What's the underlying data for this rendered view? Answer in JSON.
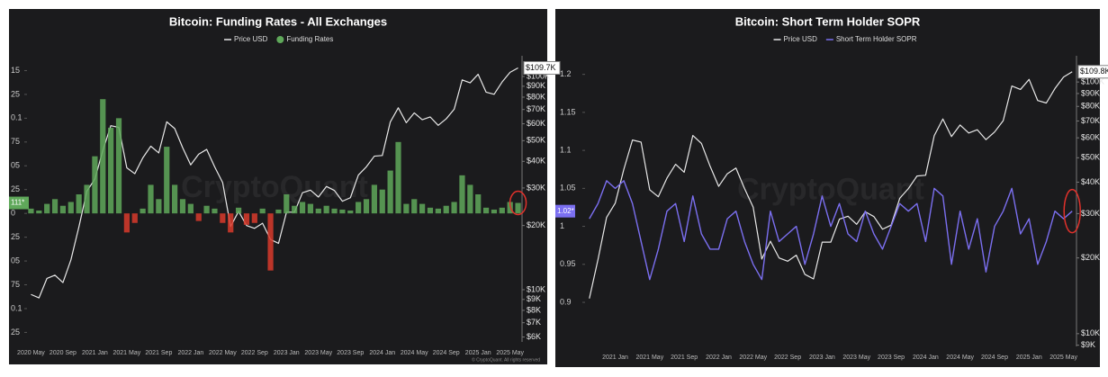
{
  "chart_data": [
    {
      "type": "combo",
      "title": "Bitcoin: Funding Rates - All Exchanges",
      "x": [
        "2020 May",
        null,
        null,
        null,
        "2020 Sep",
        null,
        null,
        null,
        "2021 Jan",
        null,
        null,
        null,
        "2021 May",
        null,
        null,
        null,
        "2021 Sep",
        null,
        null,
        null,
        "2022 Jan",
        null,
        null,
        null,
        "2022 May",
        null,
        null,
        null,
        "2022 Sep",
        null,
        null,
        null,
        "2023 Jan",
        null,
        null,
        null,
        "2023 May",
        null,
        null,
        null,
        "2023 Sep",
        null,
        null,
        null,
        "2024 Jan",
        null,
        null,
        null,
        "2024 May",
        null,
        null,
        null,
        "2024 Sep",
        null,
        null,
        null,
        "2025 Jan",
        null,
        null,
        null,
        "2025 May",
        null
      ],
      "series": [
        {
          "name": "Price USD",
          "type": "line",
          "axis": "y2",
          "color": "#e8e8e8",
          "values": [
            9500,
            9150,
            11300,
            11700,
            10800,
            13800,
            19700,
            29000,
            33000,
            45000,
            58800,
            57700,
            37300,
            35000,
            41500,
            47100,
            43800,
            61300,
            57000,
            46300,
            38500,
            43200,
            45500,
            37700,
            31800,
            19800,
            23300,
            20000,
            19400,
            20500,
            17200,
            16500,
            23100,
            23100,
            28500,
            29300,
            27200,
            30500,
            29200,
            26000,
            27000,
            34500,
            37700,
            42300,
            42600,
            61200,
            71300,
            60700,
            67500,
            62700,
            64600,
            59000,
            63300,
            70200,
            96400,
            93400,
            102400,
            84400,
            82500,
            94200,
            104600,
            109700
          ]
        },
        {
          "name": "Funding Rates",
          "type": "bar",
          "color": "#5fa85a",
          "negative_color": "#d8392b",
          "values": [
            0.005,
            0.003,
            0.01,
            0.015,
            0.008,
            0.012,
            0.02,
            0.03,
            0.06,
            0.12,
            0.09,
            0.1,
            -0.02,
            -0.01,
            0.005,
            0.03,
            0.015,
            0.07,
            0.03,
            0.015,
            0.01,
            -0.008,
            0.008,
            0.005,
            -0.01,
            -0.02,
            0.006,
            -0.012,
            -0.01,
            0.005,
            -0.06,
            0.004,
            0.02,
            0.008,
            0.012,
            0.01,
            0.005,
            0.008,
            0.005,
            0.004,
            0.003,
            0.012,
            0.015,
            0.03,
            0.025,
            0.045,
            0.075,
            0.01,
            0.015,
            0.01,
            0.006,
            0.005,
            0.008,
            0.012,
            0.04,
            0.03,
            0.02,
            0.006,
            0.004,
            0.006,
            0.012,
            0.011
          ]
        }
      ],
      "ylim": [
        -0.135,
        0.158
      ],
      "yticks": [
        {
          "value": 0.15,
          "label": "15"
        },
        {
          "value": 0.125,
          "label": "25"
        },
        {
          "value": 0.1,
          "label": "0.1"
        },
        {
          "value": 0.075,
          "label": "75"
        },
        {
          "value": 0.05,
          "label": "05"
        },
        {
          "value": 0.025,
          "label": "25"
        },
        0,
        {
          "value": -0.025,
          "label": "25"
        },
        {
          "value": -0.05,
          "label": "05"
        },
        {
          "value": -0.075,
          "label": "75"
        },
        {
          "value": -0.1,
          "label": "0.1"
        },
        {
          "value": -0.125,
          "label": "25"
        }
      ],
      "y2lim": [
        5690,
        115700
      ],
      "y2log": true,
      "y2ticks": [
        {
          "value": 100000,
          "label": "$100K"
        },
        {
          "value": 90000,
          "label": "$90K"
        },
        {
          "value": 80000,
          "label": "$80K"
        },
        {
          "value": 70000,
          "label": "$70K"
        },
        {
          "value": 60000,
          "label": "$60K"
        },
        {
          "value": 50000,
          "label": "$50K"
        },
        {
          "value": 40000,
          "label": "$40K"
        },
        {
          "value": 30000,
          "label": "$30K"
        },
        {
          "value": 20000,
          "label": "$20K"
        },
        {
          "value": 10000,
          "label": "$10K"
        },
        {
          "value": 9000,
          "label": "$9K"
        },
        {
          "value": 8000,
          "label": "$8K"
        },
        {
          "value": 7000,
          "label": "$7K"
        },
        {
          "value": 6000,
          "label": "$6K"
        }
      ],
      "last_labels": {
        "y": "111*",
        "y2": "$109.7K"
      },
      "watermark": "CryptoQuant",
      "footer": "© CryptoQuant. All rights reserved"
    },
    {
      "type": "combo",
      "title": "Bitcoin: Short Term Holder SOPR",
      "x": [
        null,
        null,
        null,
        "2021 Jan",
        null,
        null,
        null,
        "2021 May",
        null,
        null,
        null,
        "2021 Sep",
        null,
        null,
        null,
        "2022 Jan",
        null,
        null,
        null,
        "2022 May",
        null,
        null,
        null,
        "2022 Sep",
        null,
        null,
        null,
        "2023 Jan",
        null,
        null,
        null,
        "2023 May",
        null,
        null,
        null,
        "2023 Sep",
        null,
        null,
        null,
        "2024 Jan",
        null,
        null,
        null,
        "2024 May",
        null,
        null,
        null,
        "2024 Sep",
        null,
        null,
        null,
        "2025 Jan",
        null,
        null,
        null,
        "2025 May",
        null
      ],
      "series": [
        {
          "name": "Price USD",
          "type": "line",
          "axis": "y2",
          "color": "#e8e8e8",
          "values": [
            13800,
            19700,
            29000,
            33000,
            45000,
            58800,
            57700,
            37300,
            35000,
            41500,
            47100,
            43800,
            61300,
            57000,
            46300,
            38500,
            43200,
            45500,
            37700,
            31800,
            19800,
            23300,
            20000,
            19400,
            20500,
            17200,
            16500,
            23100,
            23100,
            28500,
            29300,
            27200,
            30500,
            29200,
            26000,
            27000,
            34500,
            37700,
            42300,
            42600,
            61200,
            71300,
            60700,
            67500,
            62700,
            64600,
            59000,
            63300,
            70200,
            96400,
            93400,
            102400,
            84400,
            82500,
            94200,
            104600,
            109800
          ]
        },
        {
          "name": "Short Term Holder SOPR",
          "type": "line",
          "color": "#7b6ff0",
          "values": [
            1.01,
            1.03,
            1.06,
            1.05,
            1.06,
            1.03,
            0.98,
            0.93,
            0.97,
            1.02,
            1.03,
            0.98,
            1.04,
            0.99,
            0.97,
            0.97,
            1.01,
            1.02,
            0.98,
            0.95,
            0.93,
            1.02,
            0.98,
            0.99,
            1.0,
            0.95,
            0.99,
            1.04,
            1.0,
            1.03,
            0.99,
            0.98,
            1.02,
            0.99,
            0.97,
            1.0,
            1.03,
            1.02,
            1.03,
            0.98,
            1.05,
            1.04,
            0.95,
            1.02,
            0.97,
            1.01,
            0.94,
            1.0,
            1.02,
            1.05,
            0.99,
            1.01,
            0.95,
            0.98,
            1.02,
            1.01,
            1.02
          ]
        }
      ],
      "ylim": [
        0.842,
        1.215
      ],
      "yticks": [
        1.2,
        1.15,
        1.1,
        1.05,
        1,
        0.95,
        0.9
      ],
      "y2lim": [
        8900,
        119000
      ],
      "y2log": true,
      "y2ticks": [
        {
          "value": 100000,
          "label": "$100K"
        },
        {
          "value": 90000,
          "label": "$90K"
        },
        {
          "value": 80000,
          "label": "$80K"
        },
        {
          "value": 70000,
          "label": "$70K"
        },
        {
          "value": 60000,
          "label": "$60K"
        },
        {
          "value": 50000,
          "label": "$50K"
        },
        {
          "value": 40000,
          "label": "$40K"
        },
        {
          "value": 30000,
          "label": "$30K"
        },
        {
          "value": 20000,
          "label": "$20K"
        },
        {
          "value": 10000,
          "label": "$10K"
        },
        {
          "value": 9000,
          "label": "$9K"
        }
      ],
      "last_labels": {
        "y": "1.02*",
        "y2": "$109.8K"
      },
      "watermark": "CryptoQuant"
    }
  ]
}
